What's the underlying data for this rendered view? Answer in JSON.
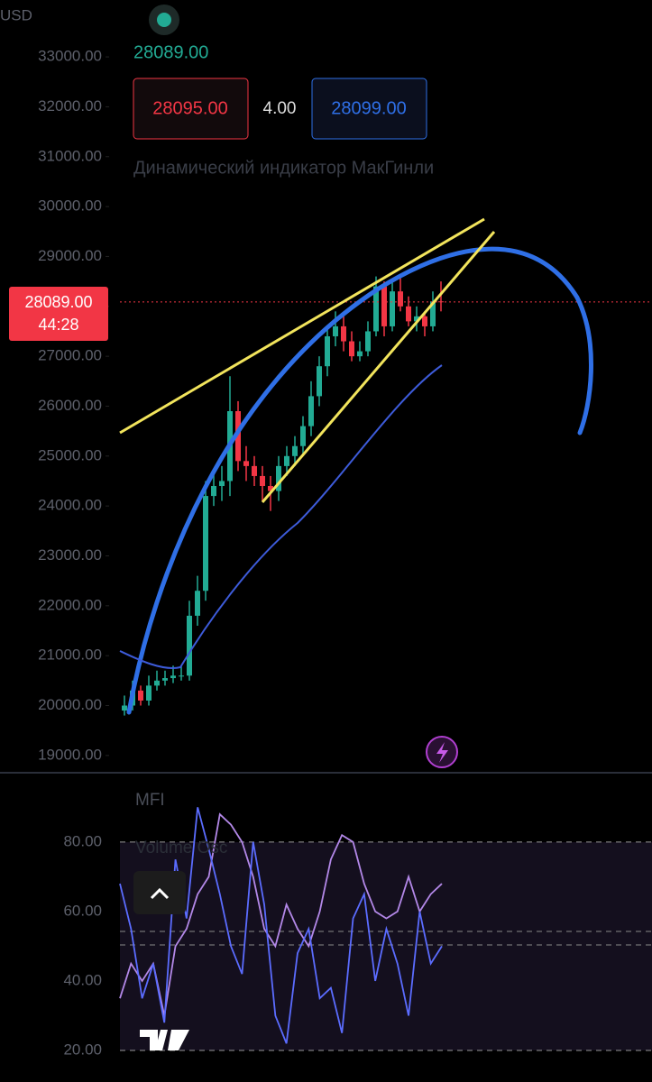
{
  "ui": {
    "currency": "USD",
    "last_price": "28089.00",
    "sell": "28095.00",
    "spread": "4.00",
    "buy": "28099.00",
    "indicator": "Динамический индикатор МакГинли",
    "price_label": "28089.00",
    "countdown": "44:28"
  },
  "chart_data": [
    {
      "type": "candlestick",
      "up_color": "#22ab94",
      "down_color": "#f23645",
      "last": 28089,
      "ylim": [
        18690,
        34140
      ],
      "yticks": [
        {
          "value": 19000,
          "label": "19000.00"
        },
        {
          "value": 20000,
          "label": "20000.00"
        },
        {
          "value": 21000,
          "label": "21000.00"
        },
        {
          "value": 22000,
          "label": "22000.00"
        },
        {
          "value": 23000,
          "label": "23000.00"
        },
        {
          "value": 24000,
          "label": "24000.00"
        },
        {
          "value": 25000,
          "label": "25000.00"
        },
        {
          "value": 26000,
          "label": "26000.00"
        },
        {
          "value": 27000,
          "label": "27000.00"
        },
        {
          "value": 28000,
          "label": "28000.00"
        },
        {
          "value": 29000,
          "label": "29000.00"
        },
        {
          "value": 30000,
          "label": "30000.00"
        },
        {
          "value": 31000,
          "label": "31000.00"
        },
        {
          "value": 32000,
          "label": "32000.00"
        },
        {
          "value": 33000,
          "label": "33000.00"
        }
      ],
      "open": [
        19900,
        20000,
        20300,
        20100,
        20400,
        20500,
        20550,
        20600,
        20600,
        21800,
        22300,
        24200,
        24400,
        24500,
        25900,
        24900,
        24800,
        24600,
        24400,
        24300,
        24800,
        25000,
        25200,
        25600,
        26200,
        26800,
        27400,
        27600,
        27300,
        27000,
        27100,
        27500,
        28400,
        27600,
        28300,
        28000,
        27700,
        27800,
        27600,
        28100
      ],
      "high": [
        20200,
        20500,
        20400,
        20600,
        20700,
        20700,
        20800,
        20800,
        22100,
        22600,
        24500,
        24700,
        24800,
        26600,
        26100,
        25200,
        25000,
        24800,
        24600,
        25000,
        25200,
        25400,
        25800,
        26500,
        27000,
        27600,
        27900,
        27800,
        27500,
        27300,
        27700,
        28600,
        28500,
        28500,
        28600,
        28200,
        28000,
        27900,
        28300,
        28500
      ],
      "low": [
        19800,
        19900,
        20000,
        20000,
        20300,
        20400,
        20450,
        20500,
        20500,
        21600,
        22100,
        24000,
        24100,
        24200,
        24700,
        24500,
        24400,
        24100,
        23900,
        24100,
        24600,
        24800,
        25000,
        25400,
        26000,
        26600,
        27200,
        27100,
        26900,
        26900,
        27000,
        27400,
        27400,
        27500,
        27900,
        27600,
        27500,
        27400,
        27500,
        27900
      ],
      "close": [
        20000,
        20300,
        20100,
        20400,
        20500,
        20550,
        20600,
        20600,
        21800,
        22300,
        24200,
        24400,
        24500,
        25900,
        24900,
        24800,
        24600,
        24400,
        24300,
        24800,
        25000,
        25200,
        25600,
        26200,
        26800,
        27400,
        27600,
        27300,
        27000,
        27100,
        27500,
        28400,
        27600,
        28300,
        28000,
        27700,
        27800,
        27600,
        28100,
        28089
      ]
    },
    {
      "type": "line",
      "ylim": [
        10.9,
        99.7
      ],
      "yticks": [
        {
          "value": 20,
          "label": "20.00"
        },
        {
          "value": 40,
          "label": "40.00"
        },
        {
          "value": 60,
          "label": "60.00"
        },
        {
          "value": 80,
          "label": "80.00"
        }
      ],
      "series": [
        {
          "name": "MFI",
          "color": "#b388e8",
          "values": [
            35,
            45,
            40,
            45,
            30,
            50,
            55,
            65,
            70,
            88,
            85,
            80,
            70,
            55,
            50,
            62,
            55,
            50,
            60,
            75,
            82,
            80,
            68,
            60,
            58,
            60,
            70,
            60,
            65,
            68
          ]
        },
        {
          "name": "Volume Osc",
          "color": "#5b6cff",
          "values": [
            68,
            55,
            35,
            45,
            28,
            75,
            58,
            90,
            78,
            65,
            50,
            42,
            80,
            62,
            30,
            22,
            48,
            55,
            35,
            38,
            25,
            58,
            65,
            40,
            55,
            45,
            30,
            60,
            45,
            50
          ]
        }
      ]
    }
  ]
}
